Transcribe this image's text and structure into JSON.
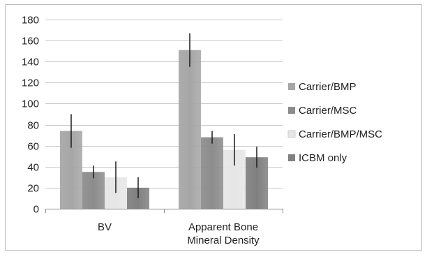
{
  "chart_data": {
    "type": "bar",
    "categories": [
      "BV",
      "Apparent Bone Mineral Density"
    ],
    "category_lines": [
      [
        "BV"
      ],
      [
        "Apparent Bone",
        "Mineral Density"
      ]
    ],
    "series": [
      {
        "name": "Carrier/BMP",
        "values": [
          74,
          151
        ],
        "errors": [
          16,
          16
        ],
        "color": "#a6a6a6"
      },
      {
        "name": "Carrier/MSC",
        "values": [
          35,
          68
        ],
        "errors": [
          6,
          6
        ],
        "color": "#8c8c8c"
      },
      {
        "name": "Carrier/BMP/MSC",
        "values": [
          30,
          56
        ],
        "errors": [
          15,
          15
        ],
        "color": "#e6e6e6"
      },
      {
        "name": "ICBM only",
        "values": [
          20,
          49
        ],
        "errors": [
          10,
          10
        ],
        "color": "#808080"
      }
    ],
    "ylim": [
      0,
      180
    ],
    "yticks": [
      0,
      20,
      40,
      60,
      80,
      100,
      120,
      140,
      160,
      180
    ],
    "grid": true,
    "legend": "right",
    "title": "",
    "xlabel": "",
    "ylabel": ""
  }
}
